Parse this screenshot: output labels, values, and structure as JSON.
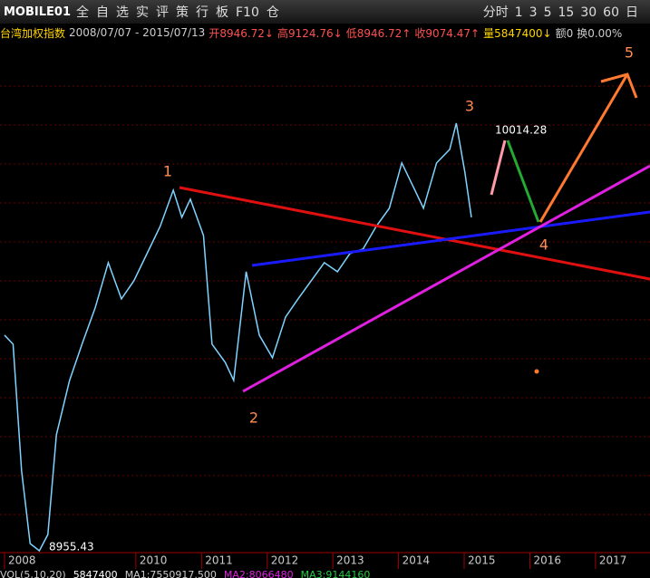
{
  "toolbar": {
    "logo": "MOBILE01",
    "buttons": [
      "全",
      "自",
      "选",
      "实",
      "评",
      "策",
      "行",
      "板",
      "F10",
      "仓"
    ],
    "periods": [
      "分时",
      "1",
      "3",
      "5",
      "15",
      "30",
      "60",
      "日"
    ]
  },
  "info_bar": {
    "name": "台湾加权指数",
    "range": "2008/07/07 - 2015/07/13",
    "open": "开8946.72↓",
    "high": "高9124.76↓",
    "low": "低8946.72↑",
    "close": "收9074.47↑",
    "volume": "量5847400↓",
    "amount": "额0",
    "turnover": "换0.00%"
  },
  "chart_data": {
    "type": "line",
    "x": [
      2008.0,
      2008.13,
      2008.26,
      2008.39,
      2008.53,
      2008.66,
      2008.79,
      2008.99,
      2009.18,
      2009.38,
      2009.58,
      2009.78,
      2009.97,
      2010.17,
      2010.37,
      2010.57,
      2010.7,
      2010.83,
      2011.03,
      2011.16,
      2011.36,
      2011.49,
      2011.68,
      2011.88,
      2012.08,
      2012.28,
      2012.47,
      2012.67,
      2012.87,
      2013.07,
      2013.26,
      2013.46,
      2013.66,
      2013.86,
      2014.05,
      2014.25,
      2014.38,
      2014.58,
      2014.78,
      2014.88,
      2015.01,
      2015.11
    ],
    "series": [
      {
        "name": "台湾加权指数",
        "color": "#7fd4ff",
        "values": [
          7011,
          6883,
          5085,
          4058,
          3955,
          4186,
          5599,
          6369,
          6883,
          7396,
          8038,
          7525,
          7781,
          8167,
          8552,
          9065,
          8680,
          8937,
          8423,
          6883,
          6626,
          6369,
          7910,
          7011,
          6690,
          7268,
          7525,
          7781,
          8038,
          7910,
          8167,
          8231,
          8552,
          8809,
          9451,
          9065,
          8809,
          9451,
          9643,
          10014,
          9322,
          8680
        ]
      }
    ],
    "xlim": [
      2008,
      2017.83
    ],
    "ylim": [
      3955,
      11182
    ],
    "xticks": [
      2008,
      2010,
      2011,
      2012,
      2013,
      2014,
      2015,
      2016,
      2017
    ],
    "annotations": [
      "1",
      "2",
      "3",
      "4",
      "5",
      "10014.28",
      "8955.43"
    ]
  },
  "footer": [
    "VOL(5,10,20)",
    "5847400",
    "MA1:7550917.500",
    "MA2:8066480",
    "MA3:9144160"
  ]
}
